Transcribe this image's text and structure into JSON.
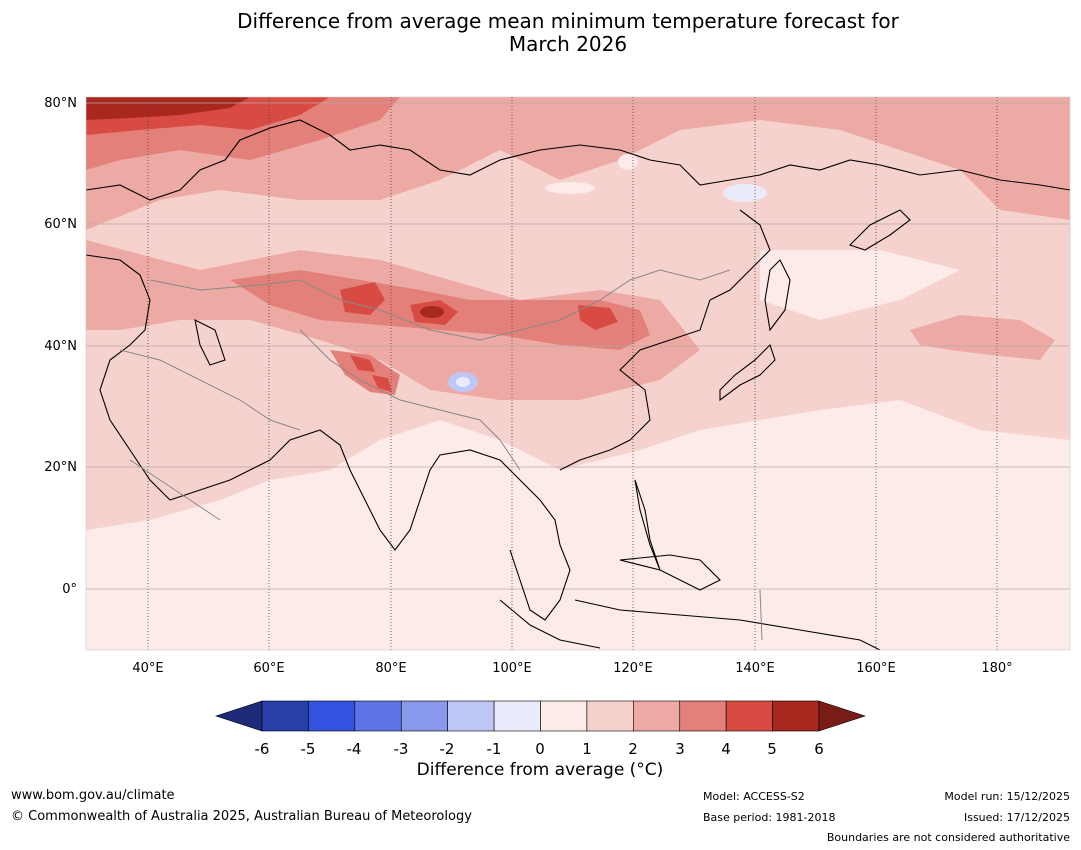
{
  "title": {
    "line1": "Difference from average mean minimum temperature forecast for",
    "line2": "March 2026"
  },
  "map": {
    "lat_labels": [
      "80°N",
      "60°N",
      "40°N",
      "20°N",
      "0°"
    ],
    "lon_labels": [
      "40°E",
      "60°E",
      "80°E",
      "100°E",
      "120°E",
      "140°E",
      "160°E",
      "180°"
    ],
    "extent": {
      "lon_min": 30,
      "lon_max": 192,
      "lat_min": -10,
      "lat_max": 81
    }
  },
  "colorbar": {
    "ticks": [
      "-6",
      "-5",
      "-4",
      "-3",
      "-2",
      "-1",
      "0",
      "1",
      "2",
      "3",
      "4",
      "5",
      "6"
    ],
    "colors": [
      "#1c2a78",
      "#283ea8",
      "#3352e0",
      "#5d73e6",
      "#8899ec",
      "#bfc7f4",
      "#e9ebfb",
      "#fcebe9",
      "#f6d2cf",
      "#edaaa5",
      "#e4807a",
      "#d84b42",
      "#a8281f",
      "#781c15"
    ],
    "title": "Difference from average (°C)"
  },
  "footer": {
    "website": "www.bom.gov.au/climate",
    "copyright": "© Commonwealth of Australia 2025, Australian Bureau of Meteorology",
    "model": "Model: ACCESS-S2",
    "base_period": "Base period: 1981-2018",
    "model_run": "Model run: 15/12/2025",
    "issued": "Issued: 17/12/2025",
    "disclaimer": "Boundaries are not considered authoritative"
  }
}
